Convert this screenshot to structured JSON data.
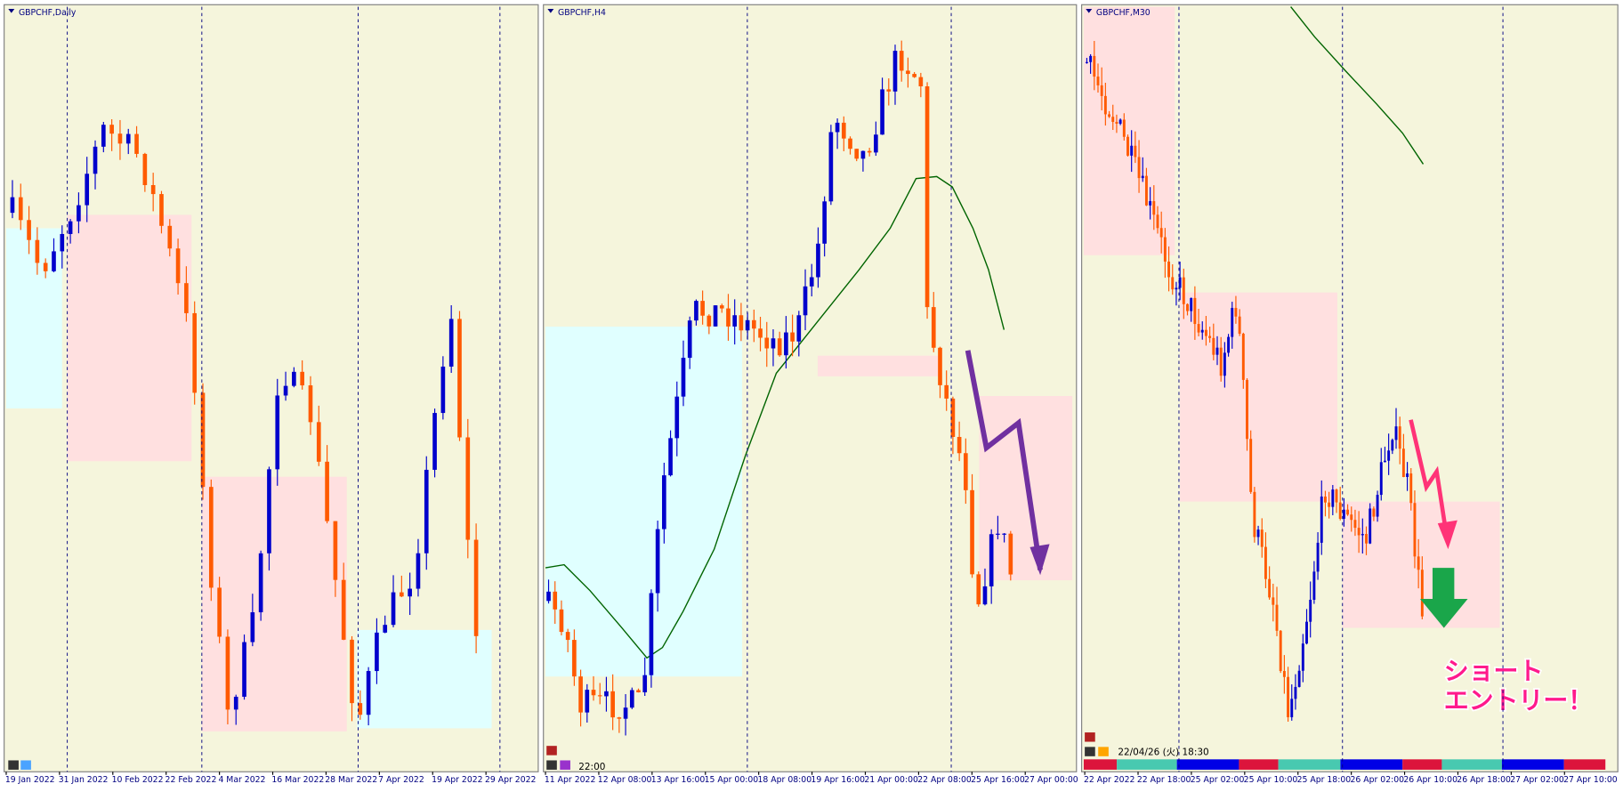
{
  "panels": [
    {
      "title": "GBPCHF,Daily",
      "x_labels": [
        "19 Jan 2022",
        "31 Jan 2022",
        "10 Feb 2022",
        "22 Feb 2022",
        "4 Mar 2022",
        "16 Mar 2022",
        "28 Mar 2022",
        "7 Apr 2022",
        "19 Apr 2022",
        "29 Apr 2022"
      ]
    },
    {
      "title": "GBPCHF,H4",
      "x_labels": [
        "11 Apr 2022",
        "12 Apr 08:00",
        "13 Apr 16:00",
        "15 Apr 00:00",
        "18 Apr 08:00",
        "19 Apr 16:00",
        "21 Apr 00:00",
        "22 Apr 08:00",
        "25 Apr 16:00",
        "27 Apr 00:00"
      ],
      "time_label": "22:00"
    },
    {
      "title": "GBPCHF,M30",
      "x_labels": [
        "22 Apr 2022",
        "22 Apr 18:00",
        "25 Apr 02:00",
        "25 Apr 10:00",
        "25 Apr 18:00",
        "26 Apr 02:00",
        "26 Apr 10:00",
        "26 Apr 18:00",
        "27 Apr 02:00",
        "27 Apr 10:00"
      ],
      "time_label": "22/04/26 (火) 18:30"
    }
  ],
  "annotation": {
    "line1": "ショート",
    "line2": "エントリー！"
  }
}
